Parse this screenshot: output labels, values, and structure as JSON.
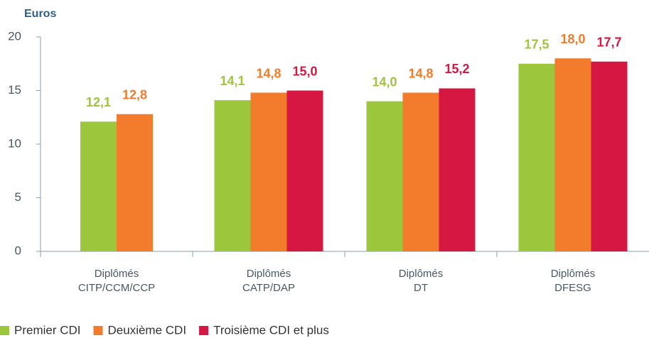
{
  "chart_data": {
    "type": "bar",
    "y_label": "Euros",
    "categories": [
      [
        "Diplômés",
        "CITP/CCM/CCP"
      ],
      [
        "Diplômés",
        "CATP/DAP"
      ],
      [
        "Diplômés",
        "DT"
      ],
      [
        "Diplômés",
        "DFESG"
      ]
    ],
    "series": [
      {
        "name": "Premier CDI",
        "color": "#9cc63b",
        "values": [
          12.1,
          14.1,
          14.0,
          17.5
        ],
        "value_labels": [
          "12,1",
          "14,1",
          "14,0",
          "17,5"
        ]
      },
      {
        "name": "Deuxième CDI",
        "color": "#f27b2c",
        "values": [
          12.8,
          14.8,
          14.8,
          18.0
        ],
        "value_labels": [
          "12,8",
          "14,8",
          "14,8",
          "18,0"
        ]
      },
      {
        "name": "Troisième CDI et plus",
        "color": "#d51742",
        "values": [
          null,
          15.0,
          15.2,
          17.7
        ],
        "value_labels": [
          null,
          "15,0",
          "15,2",
          "17,7"
        ]
      }
    ],
    "ylim": [
      0,
      20
    ],
    "yticks": [
      0,
      5,
      10,
      15,
      20
    ],
    "grid": false,
    "legend": "bottom"
  }
}
